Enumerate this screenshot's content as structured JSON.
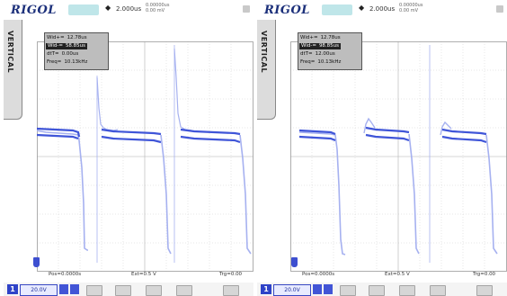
{
  "scopes": [
    {
      "id": "left",
      "brand": "RIGOL",
      "timebase": "2.000us",
      "delay_lines": [
        "0.00000us",
        "0.00 mV"
      ],
      "side_tab_label": "VERTICAL",
      "measurements": [
        {
          "label": "Wid+=",
          "value": "12.78us",
          "highlight": false
        },
        {
          "label": "Wid-=",
          "value": "58.85us",
          "highlight": true
        },
        {
          "label": "dtT=",
          "value": "0.00us",
          "highlight": false
        },
        {
          "label": "Freq=",
          "value": "10.13kHz",
          "highlight": false
        }
      ],
      "status": {
        "left": "Pos=0.0000s",
        "center": "Ext=0.5 V",
        "right": "Trg=0.00"
      },
      "channel": {
        "badge": "1",
        "value": "20.0V"
      },
      "colors": {
        "trace": "#3f55d8",
        "trace_light": "#a6b1f0",
        "grid": "#cfcfcf"
      }
    },
    {
      "id": "right",
      "brand": "RIGOL",
      "timebase": "2.000us",
      "delay_lines": [
        "0.00000us",
        "0.00 mV"
      ],
      "side_tab_label": "VERTICAL",
      "measurements": [
        {
          "label": "Wid+=",
          "value": "12.78us",
          "highlight": false
        },
        {
          "label": "Wid-=",
          "value": "98.85us",
          "highlight": true
        },
        {
          "label": "dtT=",
          "value": "12.00us",
          "highlight": false
        },
        {
          "label": "Freq=",
          "value": "10.13kHz",
          "highlight": false
        }
      ],
      "status": {
        "left": "Pos=0.0000s",
        "center": "Ext=0.5 V",
        "right": "Trg=0.00"
      },
      "channel": {
        "badge": "1",
        "value": "20.0V"
      },
      "colors": {
        "trace": "#3f55d8",
        "trace_light": "#a6b1f0",
        "grid": "#cfcfcf"
      }
    }
  ]
}
